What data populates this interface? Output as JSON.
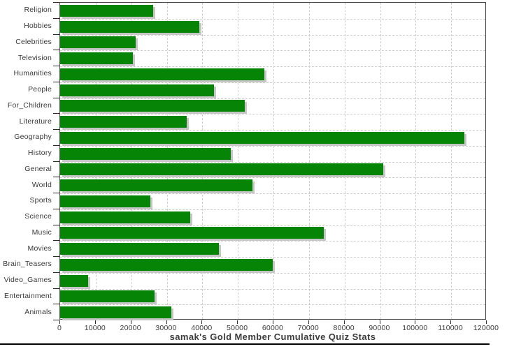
{
  "chart_data": {
    "type": "bar",
    "orientation": "horizontal",
    "title": "samak's Gold Member Cumulative Quiz Stats",
    "categories": [
      "Religion",
      "Hobbies",
      "Celebrities",
      "Television",
      "Humanities",
      "People",
      "For_Children",
      "Literature",
      "Geography",
      "History",
      "General",
      "World",
      "Sports",
      "Science",
      "Music",
      "Movies",
      "Brain_Teasers",
      "Video_Games",
      "Entertainment",
      "Animals"
    ],
    "values": [
      26200,
      39100,
      21300,
      20500,
      57500,
      43300,
      52000,
      35700,
      113800,
      48000,
      90900,
      54100,
      25400,
      36600,
      74200,
      44700,
      59800,
      7900,
      26600,
      31300
    ],
    "xlabel": "",
    "ylabel": "",
    "xlim": [
      0,
      120000
    ],
    "x_tick_interval": 10000,
    "x_tick_labels": [
      "0",
      "10000",
      "20000",
      "30000",
      "40000",
      "50000",
      "60000",
      "70000",
      "80000",
      "90000",
      "100000",
      "110000",
      "120000"
    ],
    "grid": {
      "vertical": true,
      "horizontal": true,
      "style": "dashed"
    },
    "legend": "none",
    "colors": {
      "bar": "#058405",
      "bar_shadow": "#c6c6c6",
      "gridline": "#cfcfcf",
      "plot_border": "#4a4a4a",
      "text": "#3a3a3a",
      "background": "#ffffff",
      "bottom_rule": "#000000"
    }
  }
}
